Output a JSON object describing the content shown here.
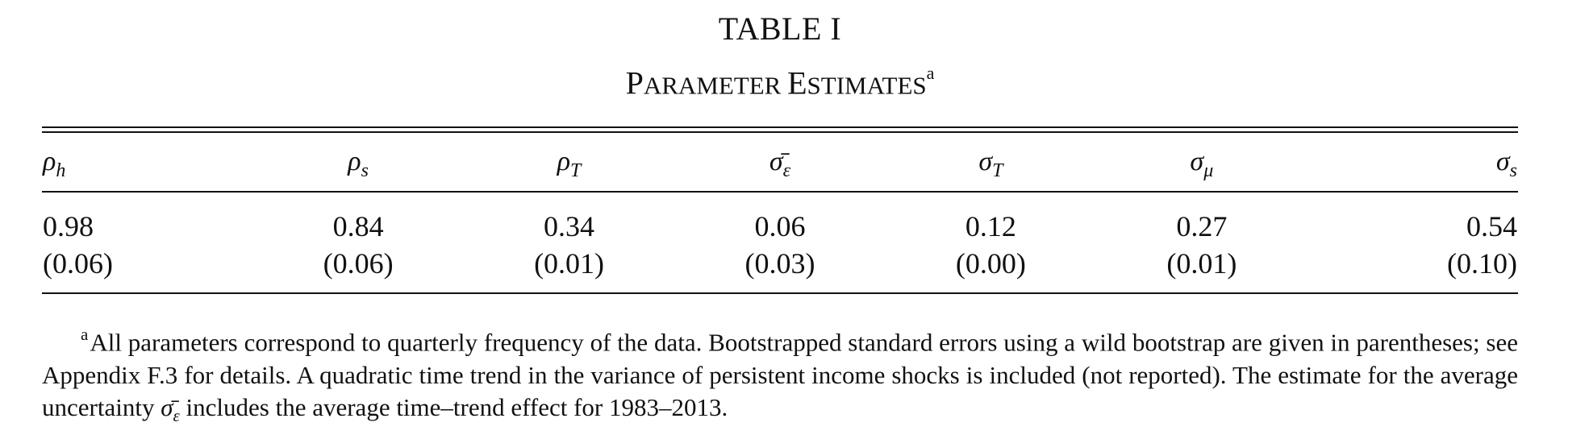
{
  "table": {
    "title": "TABLE I",
    "subtitle_caps": [
      "P",
      "ARAMETER ",
      "E",
      "STIMATES"
    ],
    "subtitle_mark": "a",
    "headers": [
      {
        "sym": "ρ",
        "sub": "h"
      },
      {
        "sym": "ρ",
        "sub": "s"
      },
      {
        "sym": "ρ",
        "sub": "T"
      },
      {
        "sym": "σ̄",
        "sub": "ε"
      },
      {
        "sym": "σ",
        "sub": "T"
      },
      {
        "sym": "σ",
        "sub": "μ"
      },
      {
        "sym": "σ",
        "sub": "s"
      }
    ],
    "estimates": [
      "0.98",
      "0.84",
      "0.34",
      "0.06",
      "0.12",
      "0.27",
      "0.54"
    ],
    "std_errors": [
      "(0.06)",
      "(0.06)",
      "(0.01)",
      "(0.03)",
      "(0.00)",
      "(0.01)",
      "(0.10)"
    ]
  },
  "footnote": {
    "mark": "a",
    "text_1": "All parameters correspond to quarterly frequency of the data. Bootstrapped standard errors using a wild bootstrap are given in parentheses; see Appendix F.3 for details. A quadratic time trend in the variance of persistent income shocks is included (not reported). The estimate for the average uncertainty ",
    "sym": "σ̄",
    "sub": "ε",
    "text_2": " includes the average time–trend effect for 1983–2013."
  }
}
